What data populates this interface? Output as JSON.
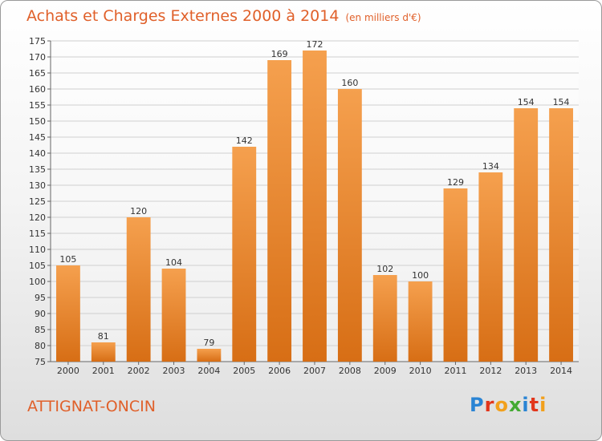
{
  "title": "Achats et Charges Externes 2000 à 2014",
  "unit": "(en milliers d'€)",
  "commune": "ATTIGNAT-ONCIN",
  "logo": [
    "P",
    "r",
    "o",
    "x",
    "i",
    "t",
    "i"
  ],
  "logo_colors": [
    "#2a84d4",
    "#e2361c",
    "#f2a01c",
    "#44aa33",
    "#2a84d4",
    "#e2361c",
    "#f2a01c"
  ],
  "colors": {
    "bar_top": "#f5a04e",
    "bar_bottom": "#d76e15",
    "accent": "#e0602a"
  },
  "chart_data": {
    "type": "bar",
    "categories": [
      "2000",
      "2001",
      "2002",
      "2003",
      "2004",
      "2005",
      "2006",
      "2007",
      "2008",
      "2009",
      "2010",
      "2011",
      "2012",
      "2013",
      "2014"
    ],
    "values": [
      105,
      81,
      120,
      104,
      79,
      142,
      169,
      172,
      160,
      102,
      100,
      129,
      134,
      154,
      154
    ],
    "ylim": [
      75,
      175
    ],
    "yticks": [
      75,
      80,
      85,
      90,
      95,
      100,
      105,
      110,
      115,
      120,
      125,
      130,
      135,
      140,
      145,
      150,
      155,
      160,
      165,
      170,
      175
    ],
    "grid": true
  }
}
